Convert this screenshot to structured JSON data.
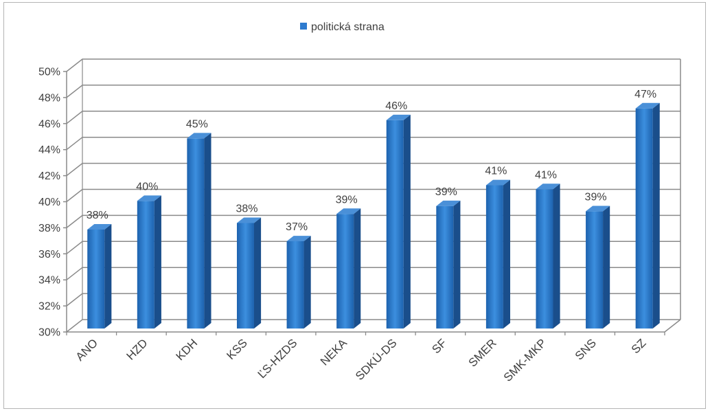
{
  "chart_data": {
    "type": "bar",
    "three_d": true,
    "categories": [
      "ANO",
      "HZD",
      "KDH",
      "KSS",
      "ĽS-HZDS",
      "NEKA",
      "SDKÚ-DS",
      "SF",
      "SMER",
      "SMK-MKP",
      "SNS",
      "SZ"
    ],
    "series": [
      {
        "name": "politická strana",
        "values": [
          37.6,
          39.8,
          44.6,
          38.1,
          36.7,
          38.8,
          46.0,
          39.4,
          41.0,
          40.7,
          39.0,
          46.9
        ],
        "data_labels": [
          "38%",
          "40%",
          "45%",
          "38%",
          "37%",
          "39%",
          "46%",
          "39%",
          "41%",
          "41%",
          "39%",
          "47%"
        ]
      }
    ],
    "ylim": [
      30,
      50
    ],
    "ytick_step": 2,
    "ytick_labels": [
      "30%",
      "32%",
      "34%",
      "36%",
      "38%",
      "40%",
      "42%",
      "44%",
      "46%",
      "48%",
      "50%"
    ],
    "grid": true,
    "legend_position": "top",
    "colors": {
      "bar": "#2E7BCF",
      "bar_front_dark": "#1D62AE",
      "bar_front_light": "#3C8FDF",
      "bar_side": "#1A4E8B",
      "bar_top": "#4A90D8",
      "grid": "#8A8A8A"
    }
  }
}
